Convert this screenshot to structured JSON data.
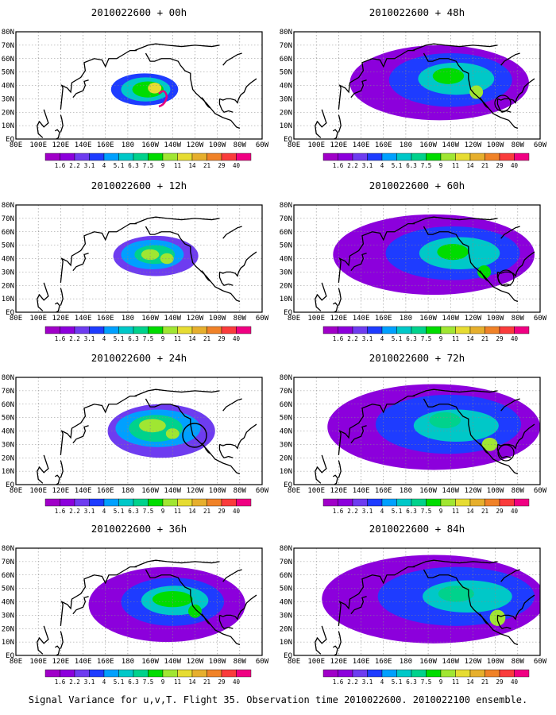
{
  "figure": {
    "caption": "Signal Variance for u,v,T. Flight 35. Observation time 2010022600. 2010022100 ensemble."
  },
  "axes": {
    "x_ticks": [
      "80E",
      "100E",
      "120E",
      "140E",
      "160E",
      "180",
      "160W",
      "140W",
      "120W",
      "100W",
      "80W",
      "60W"
    ],
    "y_ticks": [
      "EQ",
      "10N",
      "20N",
      "30N",
      "40N",
      "50N",
      "60N",
      "70N",
      "80N"
    ]
  },
  "colorbar": {
    "levels": [
      "1.6",
      "2.2",
      "3.1",
      "4",
      "5.1",
      "6.3",
      "7.5",
      "9",
      "11",
      "14",
      "21",
      "29",
      "40"
    ],
    "colors": [
      "#a000c8",
      "#8c00dc",
      "#6e3cf0",
      "#1e3cff",
      "#00a0ff",
      "#00c8c8",
      "#00d28c",
      "#00dc00",
      "#a0e632",
      "#e6dc32",
      "#e6af2d",
      "#f08228",
      "#fa3c3c",
      "#f00082"
    ]
  },
  "panels": [
    {
      "title": "2010022600 + 00h"
    },
    {
      "title": "2010022600 + 48h"
    },
    {
      "title": "2010022600 + 12h"
    },
    {
      "title": "2010022600 + 60h"
    },
    {
      "title": "2010022600 + 24h"
    },
    {
      "title": "2010022600 + 72h"
    },
    {
      "title": "2010022600 + 36h"
    },
    {
      "title": "2010022600 + 84h"
    }
  ],
  "chart_data": {
    "type": "heatmap",
    "variable": "Signal Variance for u,v,T",
    "x_range": [
      "80E",
      "60W"
    ],
    "y_range": [
      "EQ",
      "80N"
    ],
    "levels": [
      1.6,
      2.2,
      3.1,
      4,
      5.1,
      6.3,
      7.5,
      9,
      11,
      14,
      21,
      29,
      40
    ],
    "panels": [
      {
        "lead_hours": 0,
        "blobs": [
          {
            "lon": 190,
            "lat": 37,
            "level": 6
          },
          {
            "lon": 205,
            "lat": 40,
            "level": 9
          }
        ]
      },
      {
        "lead_hours": 12,
        "blobs": [
          {
            "lon": 195,
            "lat": 43,
            "level": 8
          },
          {
            "lon": 215,
            "lat": 40,
            "level": 8
          }
        ]
      },
      {
        "lead_hours": 24,
        "blobs": [
          {
            "lon": 200,
            "lat": 44,
            "level": 9
          },
          {
            "lon": 220,
            "lat": 38,
            "level": 8
          }
        ]
      },
      {
        "lead_hours": 36,
        "blobs": [
          {
            "lon": 220,
            "lat": 43,
            "level": 8
          },
          {
            "lon": 240,
            "lat": 33,
            "level": 7
          }
        ]
      },
      {
        "lead_hours": 48,
        "blobs": [
          {
            "lon": 220,
            "lat": 48,
            "level": 8
          },
          {
            "lon": 243,
            "lat": 35,
            "level": 8
          }
        ]
      },
      {
        "lead_hours": 60,
        "blobs": [
          {
            "lon": 222,
            "lat": 45,
            "level": 8
          },
          {
            "lon": 250,
            "lat": 30,
            "level": 7
          }
        ]
      },
      {
        "lead_hours": 72,
        "blobs": [
          {
            "lon": 215,
            "lat": 48,
            "level": 7
          },
          {
            "lon": 255,
            "lat": 30,
            "level": 9
          }
        ]
      },
      {
        "lead_hours": 84,
        "blobs": [
          {
            "lon": 230,
            "lat": 45,
            "level": 7
          },
          {
            "lon": 262,
            "lat": 28,
            "level": 9
          }
        ]
      }
    ]
  }
}
